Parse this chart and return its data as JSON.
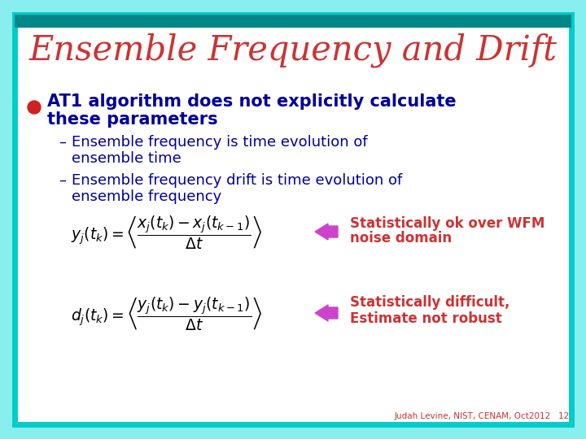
{
  "title": "Ensemble Frequency and Drift",
  "title_color": "#CC3333",
  "bg_outer": "#88EEEE",
  "bg_inner": "#FFFFFF",
  "border_color": "#00CCCC",
  "bullet_color": "#CC2222",
  "bullet_text_color": "#000099",
  "arrow_color": "#CC44CC",
  "note1_line1": "Statistically ok over WFM",
  "note1_line2": "noise domain",
  "note2_line1": "Statistically difficult,",
  "note2_line2": "Estimate not robust",
  "note_color": "#CC3333",
  "footer": "Judah Levine, NIST, CENAM, Oct2012   12",
  "footer_color": "#CC3333",
  "dash_color": "#000099",
  "formula_color": "#000000"
}
